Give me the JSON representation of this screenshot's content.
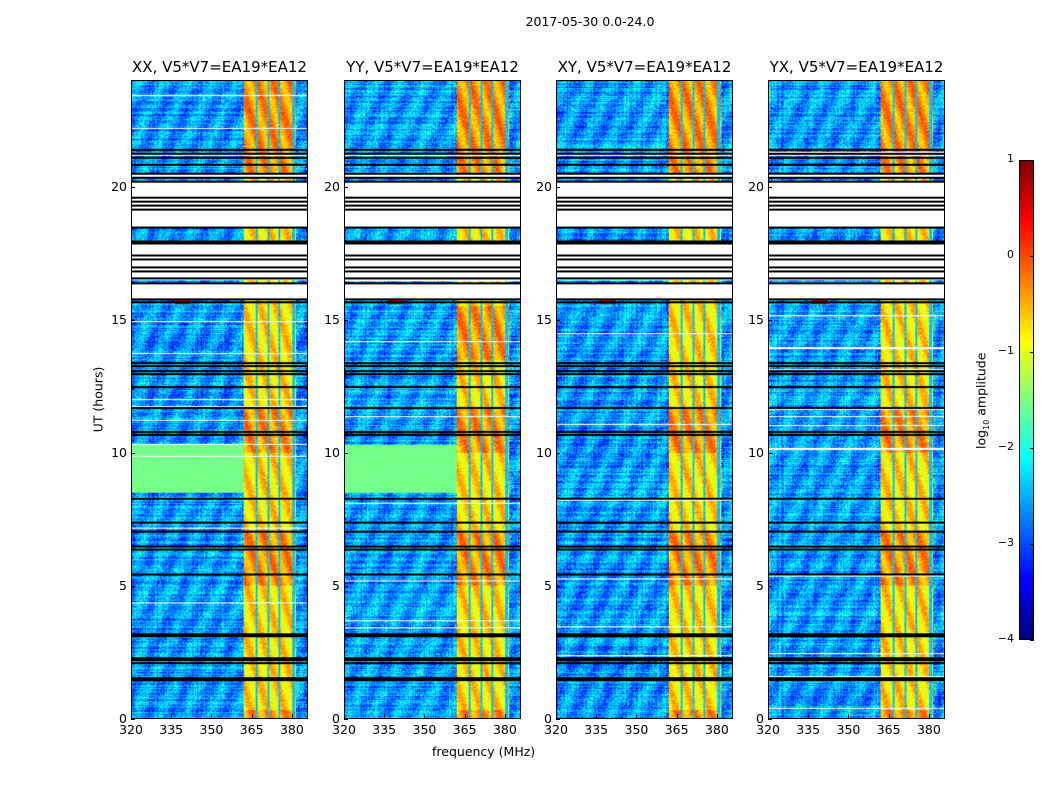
{
  "figure": {
    "suptitle": "2017-05-30 0.0-24.0",
    "xlabel": "frequency (MHz)",
    "ylabel": "UT (hours)"
  },
  "chart_data": {
    "type": "heatmap",
    "title": "2017-05-30 0.0-24.0",
    "xlabel": "frequency (MHz)",
    "ylabel": "UT (hours)",
    "xlim": [
      320,
      386
    ],
    "ylim": [
      0,
      24
    ],
    "xticks": [
      320,
      335,
      350,
      365,
      380
    ],
    "yticks": [
      0,
      5,
      10,
      15,
      20
    ],
    "colormap": "jet",
    "panels": [
      {
        "title": "XX, V5*V7=EA19*EA12",
        "green_block_hours": [
          8.5,
          10.3
        ]
      },
      {
        "title": "YY, V5*V7=EA19*EA12",
        "green_block_hours": [
          8.5,
          10.3
        ]
      },
      {
        "title": "XY, V5*V7=EA19*EA12",
        "green_block_hours": null
      },
      {
        "title": "YX, V5*V7=EA19*EA12",
        "green_block_hours": null
      }
    ],
    "flagged_hours": [
      [
        15.75,
        16.4
      ],
      [
        16.5,
        17.9
      ],
      [
        18.45,
        20.25
      ],
      [
        20.35,
        20.5
      ],
      [
        21.2,
        21.3
      ]
    ],
    "separator_hours": [
      1.45,
      1.55,
      2.1,
      2.2,
      2.3,
      3.1,
      3.2,
      5.45,
      6.4,
      6.5,
      7.05,
      7.4,
      8.3,
      10.7,
      10.8,
      11.7,
      12.5,
      13.0,
      13.1,
      13.3,
      13.4,
      15.7,
      15.8,
      16.4,
      16.6,
      16.85,
      17.0,
      17.3,
      17.45,
      17.9,
      18.0,
      18.5,
      19.2,
      19.35,
      19.5,
      19.65,
      20.25,
      20.4,
      20.55,
      20.9,
      21.15,
      21.3,
      21.45
    ],
    "rfi_band_mhz": [
      362,
      382
    ],
    "band_gaps_mhz": [
      367,
      371.5,
      375.5,
      381
    ],
    "background_log_amplitude": -2.6,
    "band_log_amplitude": -0.7,
    "colorbar": {
      "label": "log10 amplitude",
      "label_main": "log",
      "label_sub": "10",
      "label_rest": " amplitude",
      "range": [
        -4,
        1
      ],
      "ticks": [
        "1",
        "0",
        "−1",
        "−2",
        "−3",
        "−4"
      ],
      "tick_values": [
        1,
        0,
        -1,
        -2,
        -3,
        -4
      ]
    }
  }
}
